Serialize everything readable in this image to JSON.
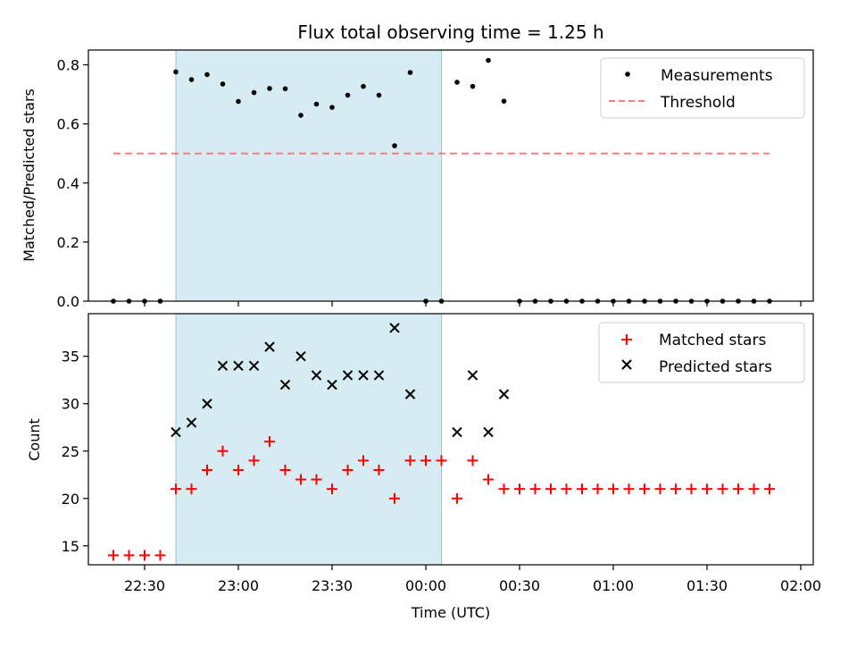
{
  "chart_data": [
    {
      "type": "scatter",
      "title": "Flux total observing time = 1.25 h",
      "xlabel": "",
      "ylabel": "Matched/Predicted stars",
      "ylim": [
        0,
        0.85
      ],
      "y_ticks": [
        "0.0",
        "0.2",
        "0.4",
        "0.6",
        "0.8"
      ],
      "y_tick_values": [
        0,
        0.2,
        0.4,
        0.6,
        0.8
      ],
      "shaded_span": [
        "22:40",
        "00:05"
      ],
      "legend": "top-right",
      "series": [
        {
          "name": "Measurements",
          "marker": "dot",
          "color": "#000000",
          "x": [
            "22:20",
            "22:25",
            "22:30",
            "22:35",
            "22:40",
            "22:45",
            "22:50",
            "22:55",
            "23:00",
            "23:05",
            "23:10",
            "23:15",
            "23:20",
            "23:25",
            "23:30",
            "23:35",
            "23:40",
            "23:45",
            "23:50",
            "23:55",
            "00:00",
            "00:05",
            "00:10",
            "00:15",
            "00:20",
            "00:25",
            "00:30",
            "00:35",
            "00:40",
            "00:45",
            "00:50",
            "00:55",
            "01:00",
            "01:05",
            "01:10",
            "01:15",
            "01:20",
            "01:25",
            "01:30",
            "01:35",
            "01:40",
            "01:45",
            "01:50"
          ],
          "y": [
            0,
            0,
            0,
            0,
            0.776,
            0.75,
            0.767,
            0.735,
            0.676,
            0.706,
            0.72,
            0.719,
            0.629,
            0.667,
            0.656,
            0.697,
            0.727,
            0.697,
            0.526,
            0.774,
            0,
            0,
            0.741,
            0.727,
            0.815,
            0.677,
            0,
            0,
            0,
            0,
            0,
            0,
            0,
            0,
            0,
            0,
            0,
            0,
            0,
            0,
            0,
            0,
            0
          ]
        },
        {
          "name": "Threshold",
          "line_style": "dashed",
          "color": "#f08080",
          "x": [
            "22:20",
            "01:50"
          ],
          "y": [
            0.5,
            0.5
          ]
        }
      ]
    },
    {
      "type": "scatter",
      "title": "",
      "xlabel": "Time (UTC)",
      "ylabel": "Count",
      "ylim": [
        13,
        39.5
      ],
      "y_ticks": [
        "15",
        "20",
        "25",
        "30",
        "35"
      ],
      "y_tick_values": [
        15,
        20,
        25,
        30,
        35
      ],
      "x_ticks": [
        "22:30",
        "23:00",
        "23:30",
        "00:00",
        "00:30",
        "01:00",
        "01:30",
        "02:00"
      ],
      "xlim": [
        "22:12",
        "02:04"
      ],
      "shaded_span": [
        "22:40",
        "00:05"
      ],
      "legend": "top-right",
      "series": [
        {
          "name": "Matched stars",
          "marker": "plus",
          "color": "#ff0000",
          "x": [
            "22:20",
            "22:25",
            "22:30",
            "22:35",
            "22:40",
            "22:45",
            "22:50",
            "22:55",
            "23:00",
            "23:05",
            "23:10",
            "23:15",
            "23:20",
            "23:25",
            "23:30",
            "23:35",
            "23:40",
            "23:45",
            "23:50",
            "23:55",
            "00:00",
            "00:05",
            "00:10",
            "00:15",
            "00:20",
            "00:25",
            "00:30",
            "00:35",
            "00:40",
            "00:45",
            "00:50",
            "00:55",
            "01:00",
            "01:05",
            "01:10",
            "01:15",
            "01:20",
            "01:25",
            "01:30",
            "01:35",
            "01:40",
            "01:45",
            "01:50"
          ],
          "y": [
            14,
            14,
            14,
            14,
            21,
            21,
            23,
            25,
            23,
            24,
            26,
            23,
            22,
            22,
            21,
            23,
            24,
            23,
            20,
            24,
            24,
            24,
            20,
            24,
            22,
            21,
            21,
            21,
            21,
            21,
            21,
            21,
            21,
            21,
            21,
            21,
            21,
            21,
            21,
            21,
            21,
            21,
            21
          ]
        },
        {
          "name": "Predicted stars",
          "marker": "x",
          "color": "#000000",
          "x": [
            "22:40",
            "22:45",
            "22:50",
            "22:55",
            "23:00",
            "23:05",
            "23:10",
            "23:15",
            "23:20",
            "23:25",
            "23:30",
            "23:35",
            "23:40",
            "23:45",
            "23:50",
            "23:55",
            "00:10",
            "00:15",
            "00:20",
            "00:25"
          ],
          "y": [
            27,
            28,
            30,
            34,
            34,
            34,
            36,
            32,
            35,
            33,
            32,
            33,
            33,
            33,
            38,
            31,
            27,
            33,
            27,
            31
          ]
        }
      ]
    }
  ]
}
